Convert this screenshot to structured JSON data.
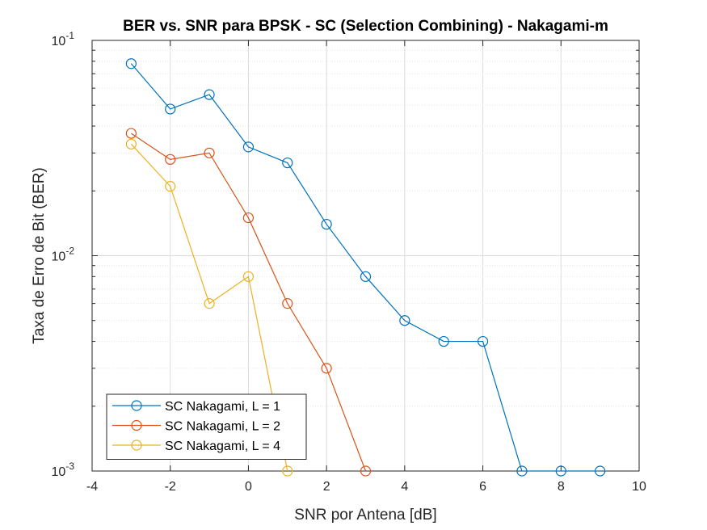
{
  "chart_data": {
    "type": "line",
    "title": "BER vs. SNR para BPSK - SC (Selection Combining) - Nakagami-m",
    "xlabel": "SNR por Antena [dB]",
    "ylabel": "Taxa de Erro de Bit (BER)",
    "xlim": [
      -4,
      10
    ],
    "ylim": [
      0.001,
      0.1
    ],
    "yscale": "log",
    "x_ticks": [
      -4,
      -2,
      0,
      2,
      4,
      6,
      8,
      10
    ],
    "x_tick_labels": [
      "-4",
      "-2",
      "0",
      "2",
      "4",
      "6",
      "8",
      "10"
    ],
    "y_ticks": [
      {
        "value": 0.001,
        "base": "10",
        "exp": "-3"
      },
      {
        "value": 0.01,
        "base": "10",
        "exp": "-2"
      },
      {
        "value": 0.1,
        "base": "10",
        "exp": "-1"
      }
    ],
    "grid": true,
    "legend_position": "bottom-left",
    "series": [
      {
        "name": "SC Nakagami, L = 1",
        "color": "#0072BD",
        "marker": "circle",
        "x": [
          -3,
          -2,
          -1,
          0,
          1,
          2,
          3,
          4,
          5,
          6,
          7,
          8,
          9
        ],
        "y": [
          0.078,
          0.048,
          0.056,
          0.032,
          0.027,
          0.014,
          0.008,
          0.005,
          0.004,
          0.004,
          0.001,
          0.001,
          0.001
        ]
      },
      {
        "name": "SC Nakagami, L = 2",
        "color": "#D95319",
        "marker": "circle",
        "x": [
          -3,
          -2,
          -1,
          0,
          1,
          2,
          3
        ],
        "y": [
          0.037,
          0.028,
          0.03,
          0.015,
          0.006,
          0.003,
          0.001
        ]
      },
      {
        "name": "SC Nakagami, L = 4",
        "color": "#EDB120",
        "marker": "circle",
        "x": [
          -3,
          -2,
          -1,
          0,
          1
        ],
        "y": [
          0.033,
          0.021,
          0.006,
          0.008,
          0.001
        ]
      }
    ]
  }
}
